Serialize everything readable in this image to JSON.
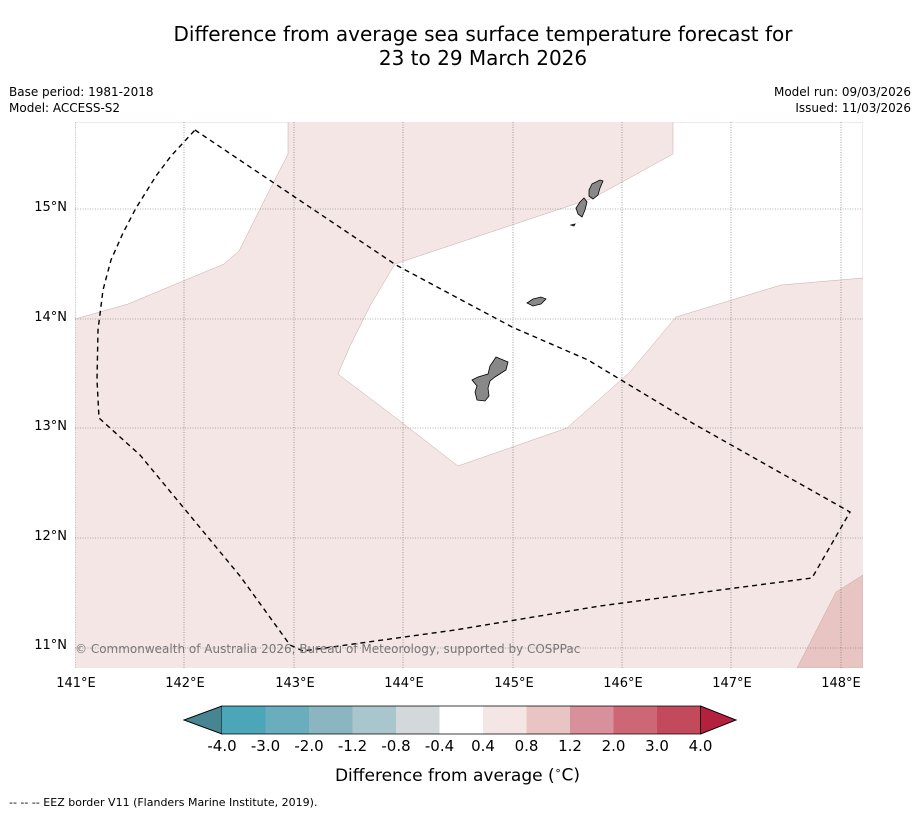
{
  "title_line1": "Difference from average sea surface temperature forecast for",
  "title_line2": "23 to 29 March 2026",
  "base_period": "Base period: 1981-2018",
  "model": "Model: ACCESS-S2",
  "model_run": "Model run: 09/03/2026",
  "issued": "Issued: 11/03/2026",
  "map": {
    "lat_labels": [
      "15°N",
      "14°N",
      "13°N",
      "12°N",
      "11°N"
    ],
    "lon_labels": [
      "141°E",
      "142°E",
      "143°E",
      "144°E",
      "145°E",
      "146°E",
      "147°E",
      "148°E"
    ],
    "copyright": "© Commonwealth of Australia 2026, Bureau of Meteorology, supported by COSPPac",
    "colors": {
      "anomaly_0_4_to_0_8": "#f4e6e5",
      "anomaly_0_8_to_1_2": "#e8c5c2",
      "neutral": "#ffffff",
      "land": "#888888",
      "grid": "#666666"
    }
  },
  "colorbar": {
    "ticks": [
      "-4.0",
      "-3.0",
      "-2.0",
      "-1.2",
      "-0.8",
      "-0.4",
      "0.4",
      "0.8",
      "1.2",
      "2.0",
      "3.0",
      "4.0"
    ],
    "colors": [
      "#468591",
      "#4ba7b7",
      "#6aadbd",
      "#8ab5c1",
      "#a8c6cc",
      "#d3d8da",
      "#ffffff",
      "#f4e6e5",
      "#e8c5c2",
      "#d8919a",
      "#cd6675",
      "#c24a5b",
      "#b4213e"
    ],
    "label": "Difference from average (",
    "unit_symbol": "∘",
    "unit_suffix": "C)"
  },
  "footnote": "--  --  -- EEZ border V11 (Flanders Marine Institute, 2019)."
}
